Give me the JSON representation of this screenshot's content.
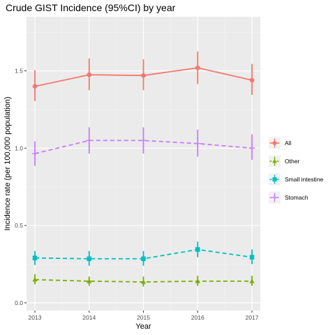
{
  "chart_data": {
    "type": "line",
    "title": "Crude GIST Incidence (95%CI) by year",
    "xlabel": "Year",
    "ylabel": "Incidence rate (per 100,000 population)",
    "x": [
      "2013",
      "2014",
      "2015",
      "2016",
      "2017"
    ],
    "ylim": [
      -0.05,
      1.85
    ],
    "yticks": [
      "0.0",
      "0.5",
      "1.0",
      "1.5"
    ],
    "grid": true,
    "legend_position": "right",
    "series": [
      {
        "name": "All",
        "color": "#F8766D",
        "line": "solid",
        "marker": "circle",
        "values": [
          1.4,
          1.475,
          1.47,
          1.52,
          1.44
        ],
        "lower": [
          1.305,
          1.375,
          1.375,
          1.415,
          1.345
        ],
        "upper": [
          1.505,
          1.58,
          1.575,
          1.625,
          1.545
        ]
      },
      {
        "name": "Other",
        "color": "#7CAE00",
        "line": "dashed",
        "marker": "triangle",
        "values": [
          0.15,
          0.14,
          0.135,
          0.14,
          0.14
        ],
        "lower": [
          0.12,
          0.11,
          0.105,
          0.11,
          0.11
        ],
        "upper": [
          0.185,
          0.17,
          0.17,
          0.175,
          0.175
        ]
      },
      {
        "name": "Small intestine",
        "color": "#00BFC4",
        "line": "dashed",
        "marker": "square",
        "values": [
          0.29,
          0.285,
          0.285,
          0.345,
          0.295
        ],
        "lower": [
          0.245,
          0.24,
          0.24,
          0.295,
          0.25
        ],
        "upper": [
          0.335,
          0.335,
          0.335,
          0.395,
          0.345
        ]
      },
      {
        "name": "Stomach",
        "color": "#C77CFF",
        "line": "dashed",
        "marker": "plus",
        "values": [
          0.965,
          1.05,
          1.05,
          1.03,
          1.0
        ],
        "lower": [
          0.885,
          0.965,
          0.965,
          0.945,
          0.925
        ],
        "upper": [
          1.045,
          1.135,
          1.135,
          1.12,
          1.09
        ]
      }
    ]
  }
}
